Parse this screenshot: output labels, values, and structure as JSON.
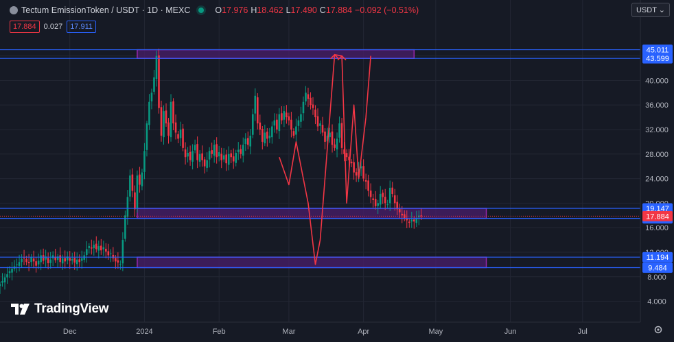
{
  "header": {
    "title": "Tectum EmissionToken / USDT · 1D · MEXC",
    "open_label": "O",
    "open": "17.976",
    "high_label": "H",
    "high": "18.462",
    "low_label": "L",
    "low": "17.490",
    "close_label": "C",
    "close": "17.884",
    "change": "−0.092 (−0.51%)"
  },
  "quote": {
    "bid": "17.884",
    "spread": "0.027",
    "ask": "17.911"
  },
  "currency_button": "USDT ⌄",
  "logo_text": "TradingView",
  "colors": {
    "background": "#161a25",
    "up": "#089981",
    "down": "#f23645",
    "hline": "#2962ff",
    "zone_border": "#9c27b0",
    "zone_fill": "#4a1d6b",
    "arrow": "#f23645",
    "price_tag": "#f23645"
  },
  "chart_data": {
    "type": "candlestick",
    "symbol": "Tectum EmissionToken / USDT",
    "interval": "1D",
    "exchange": "MEXC",
    "y_axis": {
      "ticks": [
        4.0,
        8.0,
        12.0,
        16.0,
        20.0,
        24.0,
        28.0,
        32.0,
        36.0,
        40.0,
        44.0
      ],
      "tick_labels": [
        "4.000",
        "8.000",
        "12.000",
        "16.000",
        "20.000",
        "24.000",
        "28.000",
        "32.000",
        "36.000",
        "40.000",
        "44.000"
      ],
      "ylim": [
        0.6,
        48.2
      ]
    },
    "x_axis": {
      "labels": [
        {
          "text": "Dec",
          "date": "2023-12-01"
        },
        {
          "text": "2024",
          "date": "2024-01-01"
        },
        {
          "text": "Feb",
          "date": "2024-02-01"
        },
        {
          "text": "Mar",
          "date": "2024-03-01"
        },
        {
          "text": "Apr",
          "date": "2024-04-01"
        },
        {
          "text": "May",
          "date": "2024-05-01"
        },
        {
          "text": "Jun",
          "date": "2024-06-01"
        },
        {
          "text": "Jul",
          "date": "2024-07-01"
        }
      ],
      "xlim": [
        "2023-11-02",
        "2024-07-25"
      ]
    },
    "price_levels": [
      {
        "value": 45.011,
        "label": "45.011"
      },
      {
        "value": 43.599,
        "label": "43.599"
      },
      {
        "value": 19.147,
        "label": "19.147"
      },
      {
        "value": 17.511,
        "label": "17.511"
      },
      {
        "value": 11.194,
        "label": "11.194"
      },
      {
        "value": 9.484,
        "label": "9.484"
      }
    ],
    "last_price": {
      "value": 17.884,
      "label": "17.884"
    },
    "zones": [
      {
        "from": "2023-12-29",
        "to": "2024-04-22",
        "low": 43.599,
        "high": 45.011
      },
      {
        "from": "2023-12-29",
        "to": "2024-05-22",
        "low": 17.511,
        "high": 19.147
      },
      {
        "from": "2023-12-29",
        "to": "2024-05-22",
        "low": 9.484,
        "high": 11.194
      }
    ],
    "arrow_path": [
      {
        "date": "2024-02-26",
        "value": 27.5
      },
      {
        "date": "2024-03-01",
        "value": 23.0
      },
      {
        "date": "2024-03-04",
        "value": 30.0
      },
      {
        "date": "2024-03-09",
        "value": 20.0
      },
      {
        "date": "2024-03-12",
        "value": 10.0
      },
      {
        "date": "2024-03-14",
        "value": 14.0
      },
      {
        "date": "2024-03-20",
        "value": 44.2
      },
      {
        "date": "2024-03-23",
        "value": 44.0
      },
      {
        "date": "2024-03-25",
        "value": 20.0
      },
      {
        "date": "2024-03-28",
        "value": 36.0
      },
      {
        "date": "2024-03-30",
        "value": 24.0
      },
      {
        "date": "2024-04-02",
        "value": 34.0
      },
      {
        "date": "2024-04-04",
        "value": 44.0
      }
    ],
    "arrowheads": [
      {
        "date": "2024-03-20",
        "value": 44.2
      },
      {
        "date": "2024-03-23",
        "value": 44.0
      }
    ],
    "price_series": {
      "start_date": "2023-11-02",
      "closes": [
        6.8,
        7.3,
        7.9,
        8.4,
        8.9,
        9.3,
        9.7,
        10.0,
        10.4,
        10.9,
        11.1,
        10.4,
        10.2,
        11.2,
        10.5,
        9.8,
        10.6,
        11.5,
        10.6,
        11.3,
        10.2,
        10.8,
        11.5,
        10.7,
        11.3,
        10.4,
        11.0,
        10.5,
        11.3,
        10.6,
        10.9,
        10.3,
        10.8,
        10.4,
        11.0,
        11.5,
        12.5,
        13.0,
        12.6,
        13.2,
        12.5,
        13.0,
        12.3,
        12.8,
        12.1,
        11.5,
        11.8,
        11.0,
        10.5,
        10.3,
        10.1,
        14.0,
        18.0,
        21.0,
        24.5,
        22.0,
        19.0,
        24.5,
        23.0,
        25.0,
        28.5,
        33.0,
        36.5,
        38.0,
        40.5,
        44.0,
        35.5,
        31.0,
        35.0,
        33.0,
        31.0,
        36.5,
        33.0,
        31.5,
        30.5,
        32.0,
        29.0,
        27.5,
        28.2,
        27.0,
        28.5,
        29.5,
        27.0,
        28.0,
        27.0,
        26.0,
        27.0,
        28.5,
        28.0,
        29.5,
        27.5,
        28.3,
        27.0,
        27.8,
        26.5,
        28.0,
        27.5,
        26.8,
        28.2,
        28.7,
        28.0,
        29.5,
        30.5,
        29.5,
        31.0,
        34.5,
        37.5,
        33.0,
        32.0,
        30.0,
        31.5,
        30.5,
        31.0,
        32.5,
        33.5,
        32.0,
        34.5,
        33.5,
        35.0,
        34.0,
        33.5,
        32.0,
        31.0,
        32.5,
        33.5,
        34.5,
        36.5,
        38.0,
        37.0,
        36.0,
        35.5,
        34.0,
        32.5,
        33.0,
        31.5,
        30.0,
        31.0,
        31.5,
        29.5,
        29.0,
        30.5,
        33.0,
        29.0,
        28.0,
        27.5,
        27.0,
        26.5,
        25.0,
        24.5,
        25.5,
        26.0,
        24.0,
        23.5,
        22.0,
        21.0,
        20.5,
        19.5,
        20.0,
        21.5,
        21.0,
        20.0,
        19.8,
        22.5,
        21.5,
        20.0,
        19.0,
        18.5,
        18.0,
        17.5,
        17.2,
        16.8,
        17.3,
        17.0,
        17.5,
        17.976,
        17.884
      ]
    }
  }
}
